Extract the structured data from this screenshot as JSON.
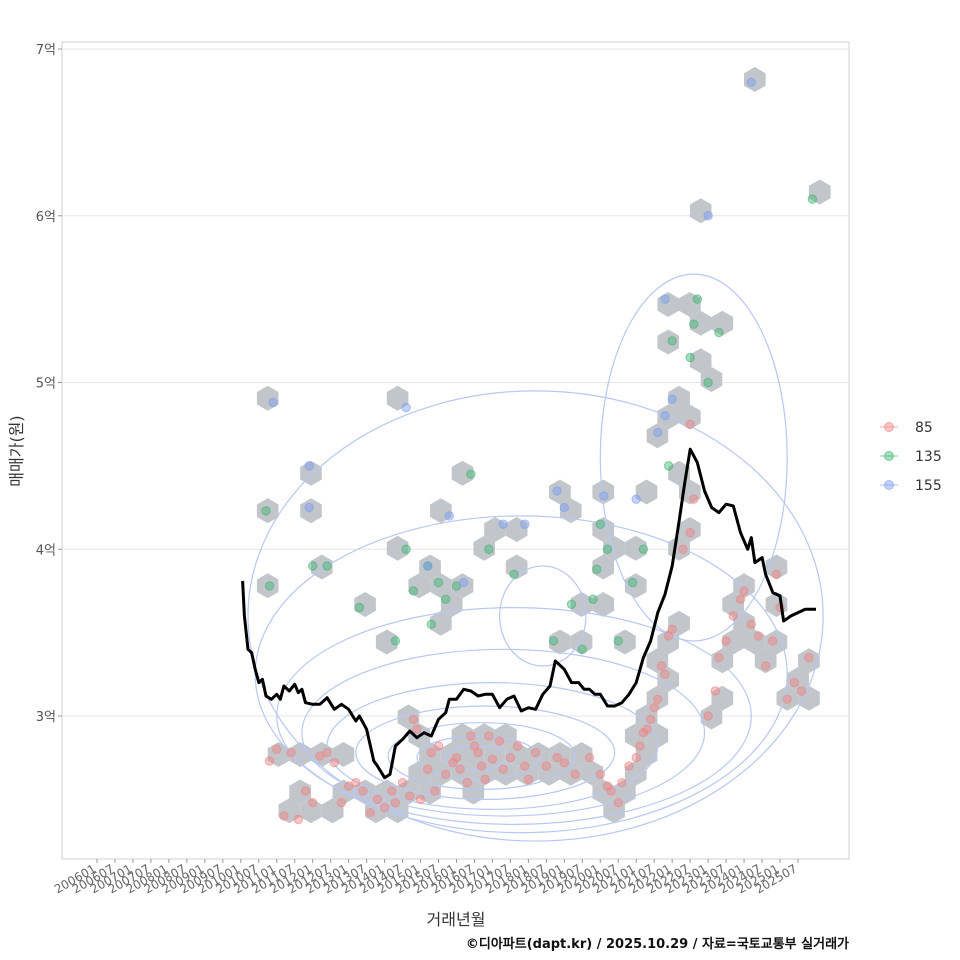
{
  "chart_data": {
    "type": "scatter",
    "ylabel": "매매가(원)",
    "xlabel": "거래년월",
    "ylim": [
      2.1,
      7.05
    ],
    "xlim": [
      2006.0,
      2027.0
    ],
    "y_ticks": [
      {
        "value": 3,
        "label": "3억"
      },
      {
        "value": 4,
        "label": "4억"
      },
      {
        "value": 5,
        "label": "5억"
      },
      {
        "value": 6,
        "label": "6억"
      },
      {
        "value": 7,
        "label": "7억"
      }
    ],
    "x_ticks": [
      "200601",
      "200607",
      "200701",
      "200707",
      "200801",
      "200807",
      "200901",
      "200907",
      "201001",
      "201007",
      "201101",
      "201107",
      "201201",
      "201207",
      "201301",
      "201307",
      "201401",
      "201407",
      "201501",
      "201507",
      "201601",
      "201607",
      "201701",
      "201707",
      "201801",
      "201807",
      "201901",
      "201907",
      "202001",
      "202007",
      "202101",
      "202107",
      "202201",
      "202207",
      "202301",
      "202307",
      "202401",
      "202407",
      "202501",
      "202507"
    ],
    "legend": [
      {
        "label": "85",
        "color": "#f08080"
      },
      {
        "label": "135",
        "color": "#3cb371"
      },
      {
        "label": "155",
        "color": "#7b9cf0"
      }
    ],
    "trend_line": [
      [
        2010.05,
        3.81
      ],
      [
        2010.1,
        3.6
      ],
      [
        2010.2,
        3.4
      ],
      [
        2010.3,
        3.38
      ],
      [
        2010.4,
        3.28
      ],
      [
        2010.5,
        3.2
      ],
      [
        2010.6,
        3.22
      ],
      [
        2010.7,
        3.12
      ],
      [
        2010.85,
        3.1
      ],
      [
        2011.0,
        3.13
      ],
      [
        2011.1,
        3.1
      ],
      [
        2011.2,
        3.18
      ],
      [
        2011.35,
        3.15
      ],
      [
        2011.5,
        3.19
      ],
      [
        2011.6,
        3.14
      ],
      [
        2011.7,
        3.16
      ],
      [
        2011.8,
        3.08
      ],
      [
        2012.0,
        3.07
      ],
      [
        2012.2,
        3.07
      ],
      [
        2012.4,
        3.11
      ],
      [
        2012.6,
        3.04
      ],
      [
        2012.8,
        3.07
      ],
      [
        2013.0,
        3.04
      ],
      [
        2013.2,
        2.97
      ],
      [
        2013.3,
        3.0
      ],
      [
        2013.5,
        2.92
      ],
      [
        2013.7,
        2.73
      ],
      [
        2013.8,
        2.7
      ],
      [
        2014.0,
        2.63
      ],
      [
        2014.15,
        2.65
      ],
      [
        2014.3,
        2.82
      ],
      [
        2014.5,
        2.86
      ],
      [
        2014.7,
        2.91
      ],
      [
        2014.9,
        2.87
      ],
      [
        2015.1,
        2.9
      ],
      [
        2015.3,
        2.88
      ],
      [
        2015.5,
        2.98
      ],
      [
        2015.7,
        3.02
      ],
      [
        2015.8,
        3.1
      ],
      [
        2016.0,
        3.1
      ],
      [
        2016.2,
        3.16
      ],
      [
        2016.4,
        3.15
      ],
      [
        2016.6,
        3.12
      ],
      [
        2016.8,
        3.13
      ],
      [
        2017.0,
        3.13
      ],
      [
        2017.2,
        3.05
      ],
      [
        2017.4,
        3.1
      ],
      [
        2017.6,
        3.12
      ],
      [
        2017.8,
        3.03
      ],
      [
        2018.0,
        3.05
      ],
      [
        2018.2,
        3.04
      ],
      [
        2018.4,
        3.13
      ],
      [
        2018.6,
        3.18
      ],
      [
        2018.75,
        3.33
      ],
      [
        2019.0,
        3.28
      ],
      [
        2019.2,
        3.2
      ],
      [
        2019.4,
        3.2
      ],
      [
        2019.55,
        3.16
      ],
      [
        2019.7,
        3.16
      ],
      [
        2019.85,
        3.13
      ],
      [
        2020.0,
        3.13
      ],
      [
        2020.2,
        3.06
      ],
      [
        2020.4,
        3.06
      ],
      [
        2020.6,
        3.08
      ],
      [
        2020.8,
        3.13
      ],
      [
        2021.0,
        3.2
      ],
      [
        2021.2,
        3.35
      ],
      [
        2021.4,
        3.45
      ],
      [
        2021.6,
        3.62
      ],
      [
        2021.8,
        3.73
      ],
      [
        2022.0,
        3.9
      ],
      [
        2022.2,
        4.18
      ],
      [
        2022.35,
        4.4
      ],
      [
        2022.5,
        4.6
      ],
      [
        2022.7,
        4.52
      ],
      [
        2022.9,
        4.35
      ],
      [
        2023.1,
        4.25
      ],
      [
        2023.3,
        4.22
      ],
      [
        2023.5,
        4.27
      ],
      [
        2023.7,
        4.26
      ],
      [
        2023.9,
        4.1
      ],
      [
        2024.1,
        4.0
      ],
      [
        2024.2,
        4.07
      ],
      [
        2024.3,
        3.92
      ],
      [
        2024.5,
        3.95
      ],
      [
        2024.6,
        3.85
      ],
      [
        2024.8,
        3.74
      ],
      [
        2025.0,
        3.72
      ],
      [
        2025.1,
        3.57
      ],
      [
        2025.3,
        3.6
      ],
      [
        2025.5,
        3.62
      ],
      [
        2025.7,
        3.64
      ],
      [
        2026.0,
        3.64
      ]
    ],
    "points_85": [
      [
        2010.8,
        2.73
      ],
      [
        2011.0,
        2.8
      ],
      [
        2011.2,
        2.4
      ],
      [
        2011.4,
        2.78
      ],
      [
        2011.6,
        2.38
      ],
      [
        2011.8,
        2.55
      ],
      [
        2012.0,
        2.48
      ],
      [
        2012.2,
        2.76
      ],
      [
        2012.4,
        2.78
      ],
      [
        2012.6,
        2.72
      ],
      [
        2012.8,
        2.48
      ],
      [
        2013.0,
        2.58
      ],
      [
        2013.2,
        2.6
      ],
      [
        2013.4,
        2.55
      ],
      [
        2013.6,
        2.42
      ],
      [
        2013.8,
        2.5
      ],
      [
        2014.0,
        2.45
      ],
      [
        2014.2,
        2.55
      ],
      [
        2014.3,
        2.48
      ],
      [
        2014.5,
        2.6
      ],
      [
        2014.7,
        2.52
      ],
      [
        2014.8,
        2.98
      ],
      [
        2014.9,
        2.92
      ],
      [
        2015.0,
        2.5
      ],
      [
        2015.2,
        2.68
      ],
      [
        2015.3,
        2.78
      ],
      [
        2015.4,
        2.55
      ],
      [
        2015.5,
        2.82
      ],
      [
        2015.7,
        2.65
      ],
      [
        2015.9,
        2.72
      ],
      [
        2016.0,
        2.75
      ],
      [
        2016.1,
        2.68
      ],
      [
        2016.3,
        2.6
      ],
      [
        2016.4,
        2.88
      ],
      [
        2016.5,
        2.82
      ],
      [
        2016.6,
        2.78
      ],
      [
        2016.7,
        2.7
      ],
      [
        2016.8,
        2.62
      ],
      [
        2016.9,
        2.88
      ],
      [
        2017.0,
        2.74
      ],
      [
        2017.2,
        2.85
      ],
      [
        2017.3,
        2.68
      ],
      [
        2017.5,
        2.75
      ],
      [
        2017.7,
        2.82
      ],
      [
        2017.9,
        2.7
      ],
      [
        2018.0,
        2.62
      ],
      [
        2018.2,
        2.78
      ],
      [
        2018.5,
        2.7
      ],
      [
        2018.8,
        2.75
      ],
      [
        2019.0,
        2.72
      ],
      [
        2019.3,
        2.65
      ],
      [
        2019.7,
        2.75
      ],
      [
        2020.0,
        2.65
      ],
      [
        2020.2,
        2.58
      ],
      [
        2020.3,
        2.55
      ],
      [
        2020.5,
        2.48
      ],
      [
        2020.6,
        2.6
      ],
      [
        2020.8,
        2.7
      ],
      [
        2021.0,
        2.75
      ],
      [
        2021.1,
        2.82
      ],
      [
        2021.2,
        2.9
      ],
      [
        2021.3,
        2.92
      ],
      [
        2021.4,
        2.98
      ],
      [
        2021.5,
        3.05
      ],
      [
        2021.6,
        3.1
      ],
      [
        2021.7,
        3.3
      ],
      [
        2021.8,
        3.25
      ],
      [
        2021.9,
        3.48
      ],
      [
        2022.0,
        3.52
      ],
      [
        2022.3,
        4.0
      ],
      [
        2022.5,
        4.1
      ],
      [
        2022.6,
        4.3
      ],
      [
        2022.5,
        4.75
      ],
      [
        2023.0,
        3.0
      ],
      [
        2023.2,
        3.15
      ],
      [
        2023.3,
        3.35
      ],
      [
        2023.5,
        3.45
      ],
      [
        2023.7,
        3.6
      ],
      [
        2023.9,
        3.7
      ],
      [
        2024.0,
        3.75
      ],
      [
        2024.2,
        3.55
      ],
      [
        2024.4,
        3.48
      ],
      [
        2024.6,
        3.3
      ],
      [
        2024.8,
        3.45
      ],
      [
        2025.0,
        3.65
      ],
      [
        2025.2,
        3.1
      ],
      [
        2025.4,
        3.2
      ],
      [
        2025.6,
        3.15
      ],
      [
        2025.8,
        3.35
      ],
      [
        2024.9,
        3.85
      ]
    ],
    "points_135": [
      [
        2010.7,
        4.23
      ],
      [
        2010.8,
        3.78
      ],
      [
        2012.0,
        3.9
      ],
      [
        2012.4,
        3.9
      ],
      [
        2013.3,
        3.65
      ],
      [
        2014.3,
        3.45
      ],
      [
        2014.6,
        4.0
      ],
      [
        2014.8,
        3.75
      ],
      [
        2015.2,
        3.9
      ],
      [
        2015.3,
        3.55
      ],
      [
        2015.5,
        3.8
      ],
      [
        2015.7,
        3.7
      ],
      [
        2016.0,
        3.78
      ],
      [
        2016.4,
        4.45
      ],
      [
        2016.9,
        4.0
      ],
      [
        2017.6,
        3.85
      ],
      [
        2018.7,
        3.45
      ],
      [
        2019.2,
        3.67
      ],
      [
        2019.5,
        3.4
      ],
      [
        2019.8,
        3.7
      ],
      [
        2019.9,
        3.88
      ],
      [
        2020.0,
        4.15
      ],
      [
        2020.2,
        4.0
      ],
      [
        2020.5,
        3.45
      ],
      [
        2020.9,
        3.8
      ],
      [
        2021.2,
        4.0
      ],
      [
        2021.9,
        4.5
      ],
      [
        2022.0,
        5.25
      ],
      [
        2022.5,
        5.15
      ],
      [
        2022.6,
        5.35
      ],
      [
        2022.7,
        5.5
      ],
      [
        2023.0,
        5.0
      ],
      [
        2023.3,
        5.3
      ],
      [
        2025.9,
        6.1
      ]
    ],
    "points_155": [
      [
        2010.9,
        4.88
      ],
      [
        2011.9,
        4.5
      ],
      [
        2011.9,
        4.25
      ],
      [
        2014.6,
        4.85
      ],
      [
        2015.2,
        3.9
      ],
      [
        2015.8,
        4.2
      ],
      [
        2016.2,
        3.8
      ],
      [
        2017.3,
        4.15
      ],
      [
        2017.9,
        4.15
      ],
      [
        2018.8,
        4.35
      ],
      [
        2019.0,
        4.25
      ],
      [
        2020.1,
        4.32
      ],
      [
        2021.0,
        4.3
      ],
      [
        2021.6,
        4.7
      ],
      [
        2021.8,
        4.8
      ],
      [
        2022.0,
        4.9
      ],
      [
        2021.8,
        5.5
      ],
      [
        2023.0,
        6.0
      ],
      [
        2024.2,
        6.8
      ]
    ]
  },
  "caption": "©디아파트(dapt.kr) / 2025.10.29 / 자료=국토교통부 실거래가"
}
